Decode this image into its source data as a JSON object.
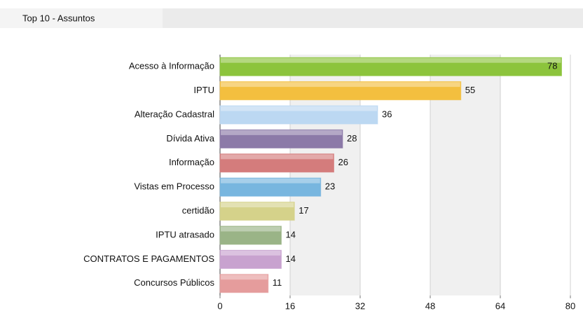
{
  "chart_data": {
    "type": "bar",
    "orientation": "horizontal",
    "title": "Top 10 - Assuntos",
    "categories": [
      "Acesso à Informação",
      "IPTU",
      "Alteração Cadastral",
      "Dívida Ativa",
      "Informação",
      "Vistas em Processo",
      "certidão",
      "IPTU atrasado",
      "CONTRATOS E PAGAMENTOS",
      "Concursos Públicos"
    ],
    "values": [
      78,
      55,
      36,
      28,
      26,
      23,
      17,
      14,
      14,
      11
    ],
    "colors": [
      "#8cc43c",
      "#f3bf3f",
      "#bcd8f2",
      "#8c7aa8",
      "#d47c7c",
      "#78b6df",
      "#d5d28a",
      "#9ab487",
      "#c8a2cf",
      "#e59c9c"
    ],
    "xlim": [
      0,
      80
    ],
    "xticks": [
      0,
      16,
      32,
      48,
      64,
      80
    ],
    "grid": true
  }
}
